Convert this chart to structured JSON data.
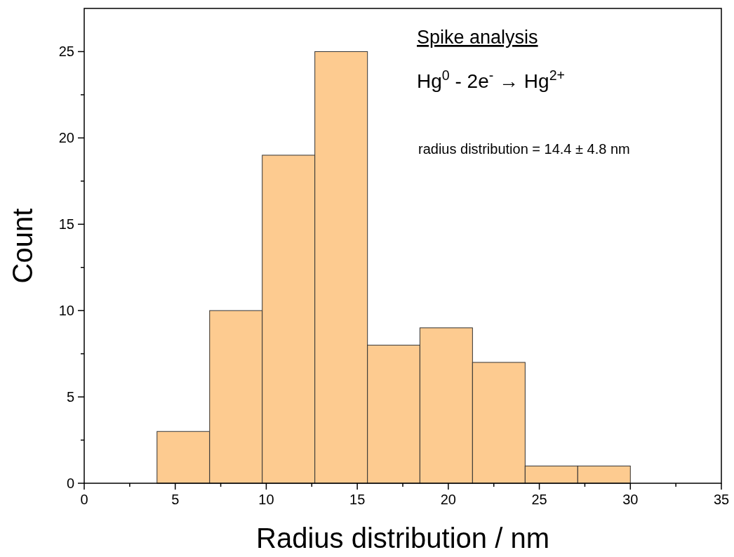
{
  "chart_data": {
    "type": "histogram",
    "xlabel": "Radius distribution / nm",
    "ylabel": "Count",
    "bins": [
      4,
      6.89,
      9.78,
      12.67,
      15.56,
      18.44,
      21.33,
      24.22,
      27.11,
      30
    ],
    "values": [
      3,
      10,
      19,
      25,
      8,
      9,
      7,
      1,
      1
    ],
    "color": "#fdcb90",
    "xlim": [
      0,
      35
    ],
    "xticks": [
      0,
      {
        "value": 2.5,
        "label": null
      },
      5,
      {
        "value": 7.5,
        "label": null
      },
      10,
      {
        "value": 12.5,
        "label": null
      },
      15,
      {
        "value": 17.5,
        "label": null
      },
      20,
      {
        "value": 22.5,
        "label": null
      },
      25,
      {
        "value": 27.5,
        "label": null
      },
      30,
      {
        "value": 32.5,
        "label": null
      },
      35
    ],
    "ylim": [
      0,
      27.5
    ],
    "yticks": [
      0,
      {
        "value": 2.5,
        "label": null
      },
      5,
      {
        "value": 7.5,
        "label": null
      },
      10,
      {
        "value": 12.5,
        "label": null
      },
      15,
      {
        "value": 17.5,
        "label": null
      },
      20,
      {
        "value": 22.5,
        "label": null
      },
      25
    ],
    "grid": false,
    "annotations": [
      "Spike analysis",
      "Hg$^{0}$ - 2e$^{-}$ → Hg$^{2+}$",
      "radius distribution = 14.4 ± 4.8 nm"
    ]
  }
}
